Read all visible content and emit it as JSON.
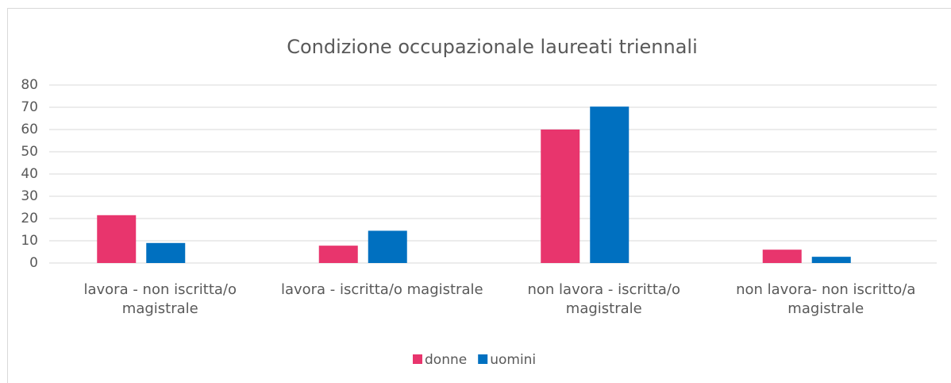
{
  "chart_data": {
    "type": "bar",
    "title": "Condizione occupazionale laureati triennali",
    "categories": [
      "lavora - non iscritta/o magistrale",
      "lavora - iscritta/o magistrale",
      "non lavora - iscritta/o magistrale",
      "non lavora- non iscritto/a magistrale"
    ],
    "series": [
      {
        "name": "donne",
        "color": "#e8356d",
        "values": [
          21.5,
          7.8,
          60,
          6
        ]
      },
      {
        "name": "uomini",
        "color": "#0070c0",
        "values": [
          9,
          14.5,
          70.3,
          2.8
        ]
      }
    ],
    "ylim": [
      0,
      80
    ],
    "yticks": [
      0,
      10,
      20,
      30,
      40,
      50,
      60,
      70,
      80
    ],
    "grid": true,
    "legend": "bottom"
  }
}
